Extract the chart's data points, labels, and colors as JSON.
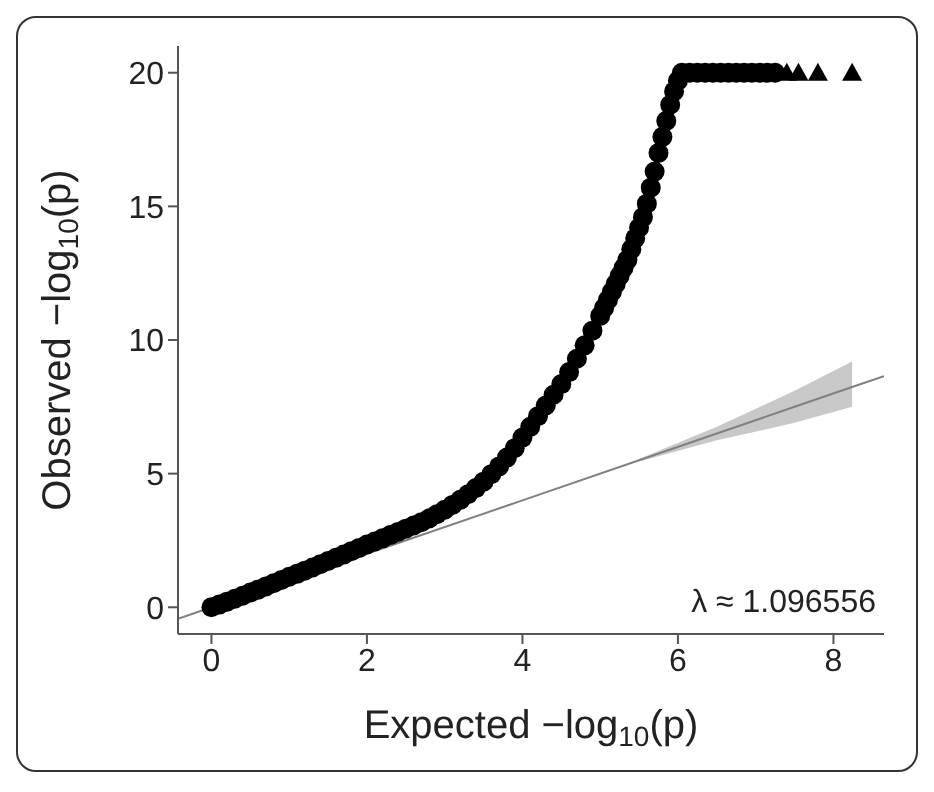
{
  "chart_data": {
    "type": "scatter",
    "xlabel": "Expected −log$_{10}$(p)",
    "ylabel": "Observed −log$_{10}$(p)",
    "xlim": [
      -0.43,
      8.65
    ],
    "ylim": [
      -1,
      21
    ],
    "xticks": [
      0,
      2,
      4,
      6,
      8
    ],
    "yticks": [
      0,
      5,
      10,
      15,
      20
    ],
    "annotations": [
      "λ ≈ 1.096556"
    ],
    "series": [
      {
        "type": "line",
        "color": "#808080",
        "marker": "none",
        "x": [
          -0.43,
          0,
          2,
          4,
          5.5,
          6.5,
          7.5,
          8.24,
          8.65
        ],
        "values": [
          -0.43,
          0,
          2,
          4,
          5.5,
          6.5,
          7.5,
          8.24,
          8.65
        ],
        "lower": [
          null,
          null,
          null,
          null,
          5.45,
          6.25,
          6.9,
          7.5,
          null
        ],
        "upper": [
          null,
          null,
          null,
          null,
          5.55,
          6.75,
          8.1,
          9.2,
          null
        ]
      },
      {
        "color": "#000000",
        "marker": "circle",
        "x": [
          0,
          0.1,
          0.2,
          0.3,
          0.4,
          0.5,
          0.6,
          0.7,
          0.8,
          0.9,
          1.0,
          1.1,
          1.2,
          1.3,
          1.4,
          1.5,
          1.6,
          1.7,
          1.8,
          1.9,
          2.0,
          2.1,
          2.2,
          2.3,
          2.4,
          2.5,
          2.6,
          2.7,
          2.8,
          2.9,
          3.0,
          3.1,
          3.2,
          3.3,
          3.4,
          3.5,
          3.6,
          3.7,
          3.8,
          3.9,
          4.0,
          4.1,
          4.2,
          4.3,
          4.4,
          4.5,
          4.6,
          4.7,
          4.8,
          4.9,
          5.0,
          5.05,
          5.1,
          5.15,
          5.2,
          5.25,
          5.3,
          5.35,
          5.4,
          5.45,
          5.5,
          5.55,
          5.6,
          5.65,
          5.7,
          5.75,
          5.8,
          5.85,
          5.9,
          5.95,
          6.0,
          6.05,
          6.15,
          6.25,
          6.35,
          6.45,
          6.55,
          6.65,
          6.75,
          6.85,
          6.95,
          7.05,
          7.15,
          7.25
        ],
        "values": [
          0,
          0.1,
          0.21,
          0.32,
          0.43,
          0.55,
          0.66,
          0.78,
          0.9,
          1.02,
          1.14,
          1.25,
          1.37,
          1.49,
          1.61,
          1.73,
          1.85,
          1.97,
          2.1,
          2.22,
          2.35,
          2.46,
          2.58,
          2.7,
          2.82,
          2.94,
          3.06,
          3.18,
          3.32,
          3.48,
          3.65,
          3.83,
          4.02,
          4.23,
          4.46,
          4.7,
          4.98,
          5.27,
          5.6,
          5.95,
          6.35,
          6.75,
          7.15,
          7.55,
          7.95,
          8.35,
          8.8,
          9.3,
          9.8,
          10.35,
          10.9,
          11.2,
          11.5,
          11.8,
          12.1,
          12.4,
          12.7,
          13.0,
          13.4,
          13.8,
          14.2,
          14.6,
          15.1,
          15.7,
          16.3,
          17.0,
          17.6,
          18.2,
          18.8,
          19.3,
          19.7,
          20,
          20,
          20,
          20,
          20,
          20,
          20,
          20,
          20,
          20,
          20,
          20,
          20
        ]
      },
      {
        "color": "#000000",
        "marker": "triangle",
        "x": [
          7.4,
          7.55,
          7.8,
          8.24
        ],
        "values": [
          20,
          20,
          20,
          20
        ]
      }
    ]
  }
}
